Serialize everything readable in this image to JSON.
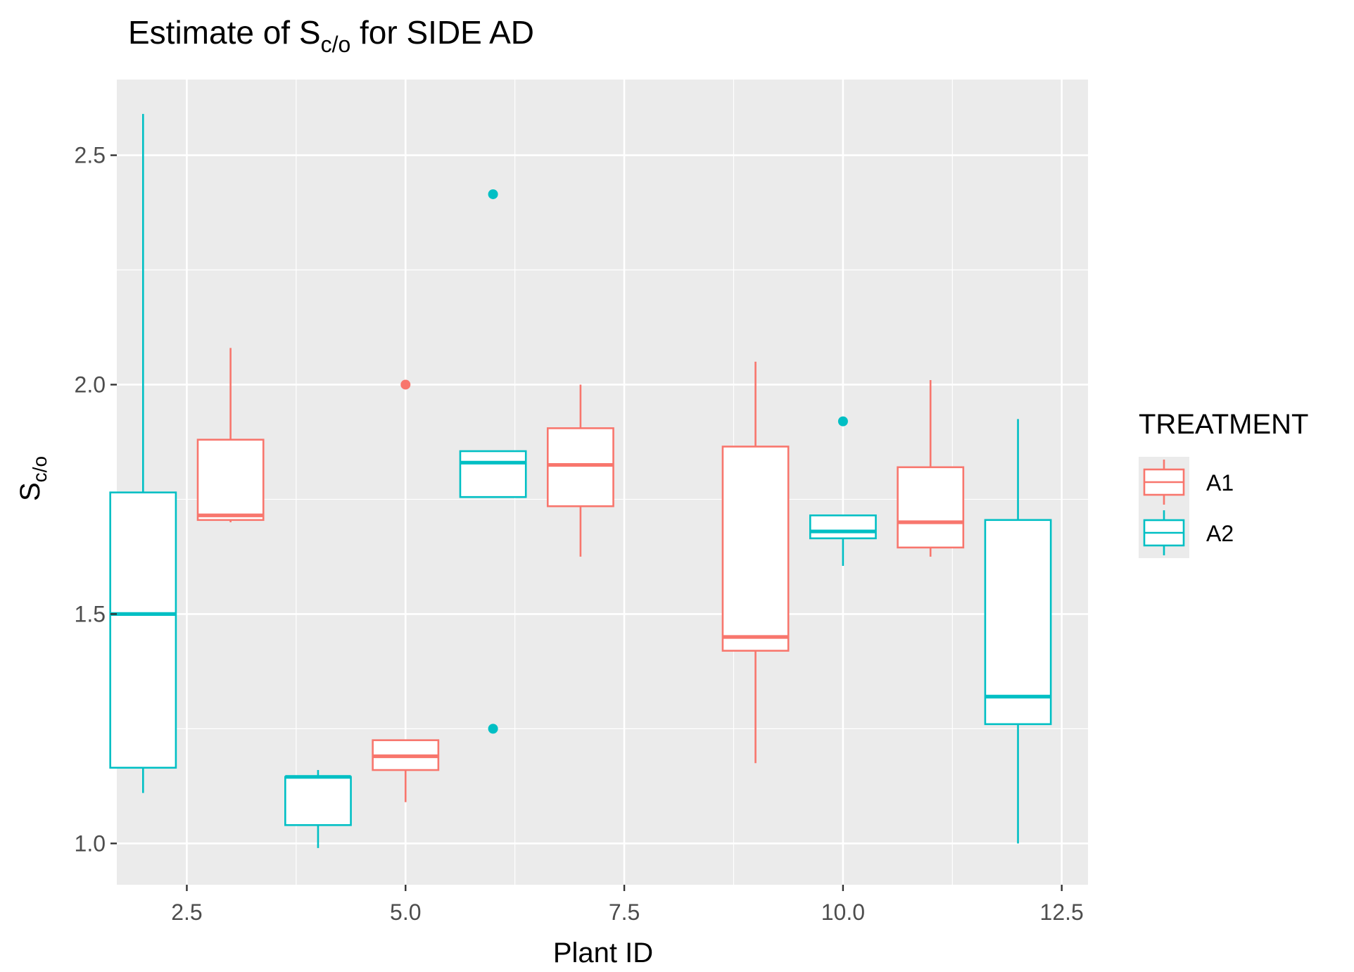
{
  "chart_data": {
    "type": "boxplot",
    "title": {
      "prefix": "Estimate of S",
      "subscript": "c/o",
      "suffix": " for SIDE AD"
    },
    "xlabel": "Plant ID",
    "ylabel": {
      "main": "S",
      "subscript": "c/o"
    },
    "xlim": [
      1.7,
      12.8
    ],
    "ylim": [
      0.91,
      2.665
    ],
    "x_ticks": [
      2.5,
      5.0,
      7.5,
      10.0,
      12.5
    ],
    "x_tick_labels": [
      "2.5",
      "5.0",
      "7.5",
      "10.0",
      "12.5"
    ],
    "y_ticks": [
      1.0,
      1.5,
      2.0,
      2.5
    ],
    "y_tick_labels": [
      "1.0",
      "1.5",
      "2.0",
      "2.5"
    ],
    "grid": true,
    "panel_background": "#ebebeb",
    "grid_color": "#ffffff",
    "legend": {
      "title": "TREATMENT",
      "position": "right",
      "entries": [
        {
          "label": "A1",
          "color": "#f8766d"
        },
        {
          "label": "A2",
          "color": "#00bfc4"
        }
      ]
    },
    "series": [
      {
        "name": "A1",
        "color": "#f8766d",
        "boxes": [
          {
            "x": 3,
            "whisker_low": 1.7,
            "q1": 1.705,
            "median": 1.715,
            "q3": 1.88,
            "whisker_high": 2.08,
            "outliers": []
          },
          {
            "x": 5,
            "whisker_low": 1.09,
            "q1": 1.16,
            "median": 1.19,
            "q3": 1.225,
            "whisker_high": 1.225,
            "outliers": [
              2.0
            ]
          },
          {
            "x": 7,
            "whisker_low": 1.625,
            "q1": 1.735,
            "median": 1.825,
            "q3": 1.905,
            "whisker_high": 2.0,
            "outliers": []
          },
          {
            "x": 9,
            "whisker_low": 1.175,
            "q1": 1.42,
            "median": 1.45,
            "q3": 1.865,
            "whisker_high": 2.05,
            "outliers": []
          },
          {
            "x": 11,
            "whisker_low": 1.625,
            "q1": 1.645,
            "median": 1.7,
            "q3": 1.82,
            "whisker_high": 2.01,
            "outliers": []
          }
        ]
      },
      {
        "name": "A2",
        "color": "#00bfc4",
        "boxes": [
          {
            "x": 2,
            "whisker_low": 1.11,
            "q1": 1.165,
            "median": 1.5,
            "q3": 1.765,
            "whisker_high": 2.59,
            "outliers": []
          },
          {
            "x": 4,
            "whisker_low": 0.99,
            "q1": 1.04,
            "median": 1.145,
            "q3": 1.145,
            "whisker_high": 1.16,
            "outliers": []
          },
          {
            "x": 6,
            "whisker_low": 1.755,
            "q1": 1.755,
            "median": 1.83,
            "q3": 1.855,
            "whisker_high": 1.855,
            "outliers": [
              2.415,
              1.25
            ]
          },
          {
            "x": 10,
            "whisker_low": 1.605,
            "q1": 1.665,
            "median": 1.68,
            "q3": 1.715,
            "whisker_high": 1.715,
            "outliers": [
              1.92
            ]
          },
          {
            "x": 12,
            "whisker_low": 1.0,
            "q1": 1.26,
            "median": 1.32,
            "q3": 1.705,
            "whisker_high": 1.925,
            "outliers": []
          }
        ]
      }
    ]
  }
}
